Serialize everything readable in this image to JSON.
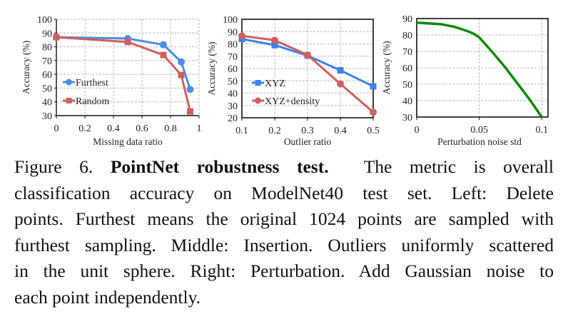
{
  "figure": {
    "label": "Figure 6.",
    "title": "PointNet robustness test.",
    "caption_lines": [
      "The metric is overall",
      "classification accuracy on ModelNet40 test set.  Left:  Delete",
      "points. Furthest means the original 1024 points are sampled with",
      "furthest sampling. Middle: Insertion. Outliers uniformly scattered",
      "in the unit sphere.  Right: Perturbation.  Add Gaussian noise to",
      "each point independently."
    ]
  },
  "chart_data": [
    {
      "type": "line",
      "title": "",
      "xlabel": "Missing data ratio",
      "ylabel": "Accuracy (%)",
      "xlim": [
        0,
        1
      ],
      "ylim": [
        30,
        100
      ],
      "xticks": [
        "0",
        "0.2",
        "0.4",
        "0.6",
        "0.8",
        "1"
      ],
      "yticks": [
        "30",
        "40",
        "50",
        "60",
        "70",
        "80",
        "90",
        "100"
      ],
      "grid": true,
      "legend_position": "lower left",
      "x": [
        0,
        0.5,
        0.75,
        0.875,
        0.9375
      ],
      "series": [
        {
          "name": "Furthest",
          "color": "#4a8fe0",
          "marker": "circle",
          "values": [
            87,
            86,
            81.5,
            69,
            49
          ]
        },
        {
          "name": "Random",
          "color": "#d0605c",
          "marker": "square",
          "values": [
            87,
            83.5,
            74,
            59.5,
            33
          ]
        }
      ]
    },
    {
      "type": "line",
      "title": "",
      "xlabel": "Outlier ratio",
      "ylabel": "Accuracy (%)",
      "xlim": [
        0.1,
        0.5
      ],
      "ylim": [
        20,
        100
      ],
      "xticks": [
        "0.1",
        "0.2",
        "0.3",
        "0.4",
        "0.5"
      ],
      "yticks": [
        "20",
        "30",
        "40",
        "50",
        "60",
        "70",
        "80",
        "90",
        "100"
      ],
      "grid": true,
      "legend_position": "lower left",
      "x": [
        0.1,
        0.2,
        0.3,
        0.4,
        0.5
      ],
      "series": [
        {
          "name": "XYZ",
          "color": "#3b82f0",
          "marker": "square",
          "values": [
            84,
            79,
            70.5,
            58.5,
            45.5
          ]
        },
        {
          "name": "XYZ+density",
          "color": "#d0605c",
          "marker": "circle",
          "values": [
            86.5,
            83,
            71,
            47.5,
            24.5
          ]
        }
      ]
    },
    {
      "type": "line",
      "title": "",
      "xlabel": "Perturbation noise std",
      "ylabel": "Accuracy (%)",
      "xlim": [
        0,
        0.105
      ],
      "ylim": [
        30,
        90
      ],
      "xticks": [
        "0",
        "0.05",
        "0.1"
      ],
      "yticks": [
        "30",
        "40",
        "50",
        "60",
        "70",
        "80",
        "90"
      ],
      "grid": true,
      "legend_position": "none",
      "x": [
        0,
        0.01,
        0.02,
        0.03,
        0.04,
        0.045,
        0.05,
        0.06,
        0.07,
        0.08,
        0.09,
        0.1
      ],
      "series": [
        {
          "name": "Accuracy",
          "color": "#0a8a0a",
          "marker": "none",
          "values": [
            87.5,
            87,
            86.5,
            85,
            82.5,
            81,
            78.5,
            70,
            61,
            51,
            41,
            30
          ]
        }
      ]
    }
  ]
}
